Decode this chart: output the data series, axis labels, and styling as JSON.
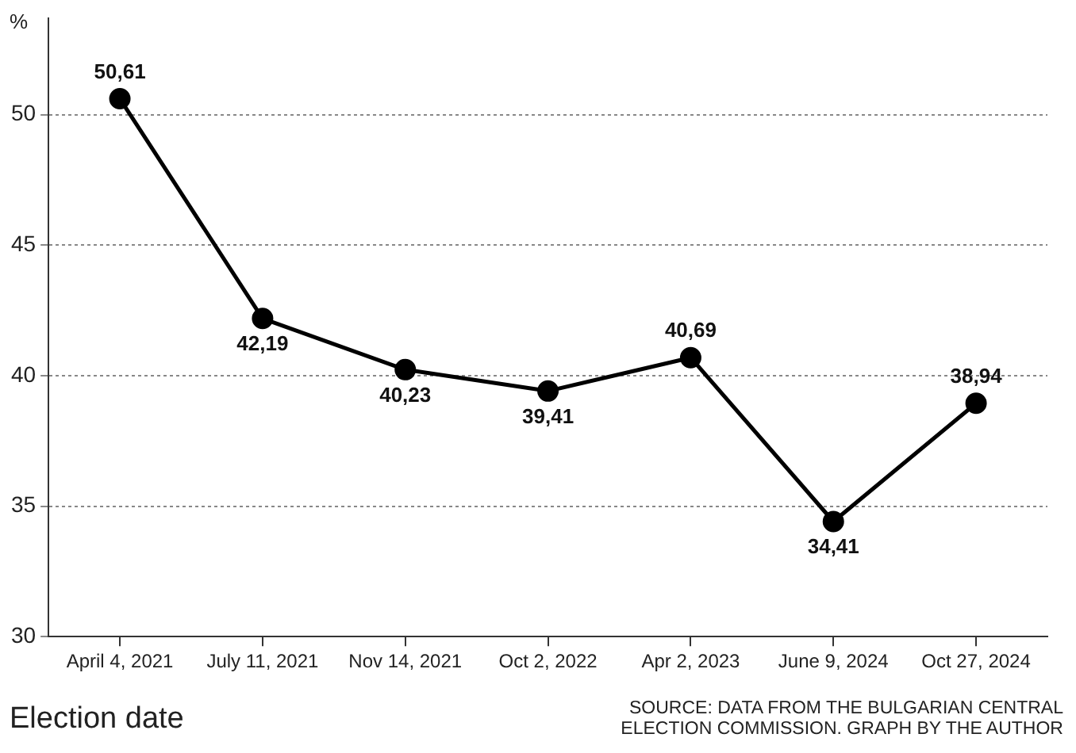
{
  "chart_data": {
    "type": "line",
    "ylabel": "%",
    "xlabel": "Election date",
    "annotations": [
      "SOURCE: DATA FROM THE BULGARIAN CENTRAL ELECTION COMMISSION. GRAPH BY THE AUTHOR"
    ],
    "categories": [
      "April 4, 2021",
      "July 11, 2021",
      "Nov 14, 2021",
      "Oct 2, 2022",
      "Apr 2, 2023",
      "June 9, 2024",
      "Oct 27, 2024"
    ],
    "series": [
      {
        "color": "#000000",
        "values": [
          50.61,
          42.19,
          40.23,
          39.41,
          40.69,
          34.41,
          38.94
        ],
        "value_labels": [
          "50,61",
          "42,19",
          "40,23",
          "39,41",
          "40,69",
          "34,41",
          "38,94"
        ]
      }
    ],
    "ylim": [
      30,
      53.7
    ],
    "yticks": [
      30,
      35,
      40,
      45,
      50
    ],
    "grid": "y",
    "legend": false,
    "marker": "circle",
    "line_style": "solid"
  }
}
